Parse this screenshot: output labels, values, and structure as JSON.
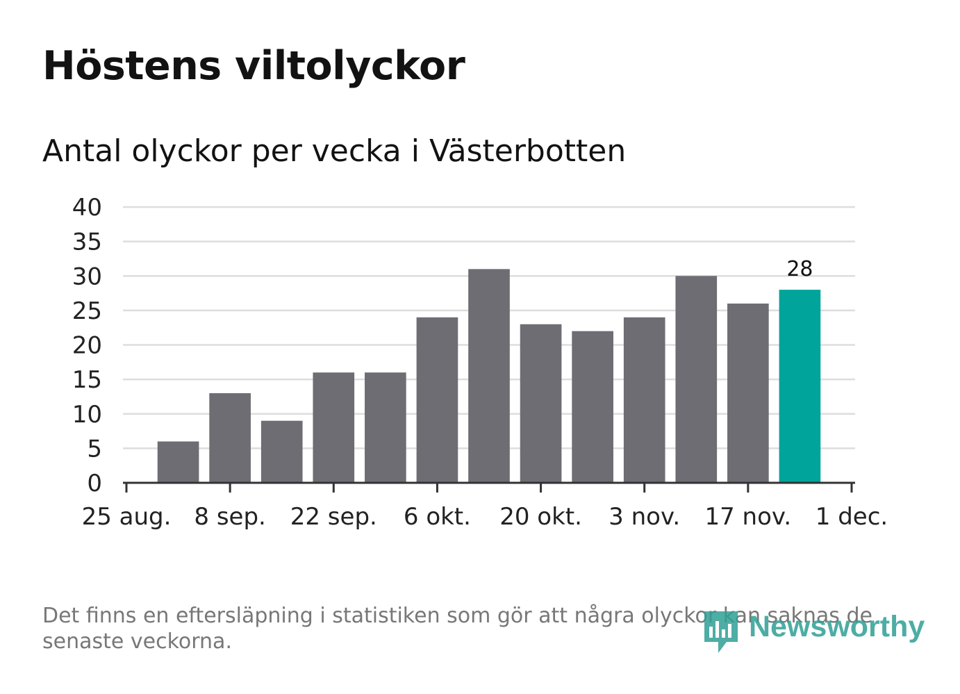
{
  "title": "Höstens viltolyckor",
  "subtitle": "Antal olyckor per vecka i Västerbotten",
  "footnote": "Det finns en eftersläpning i statistiken som gör att några olyckor kan saknas de senaste veckorna.",
  "brand": {
    "name": "Newsworthy",
    "icon": "bar-chart-speech-bubble-icon"
  },
  "colors": {
    "bar": "#6e6d73",
    "highlight": "#00a49a",
    "grid": "#dddddd",
    "axis": "#333333",
    "text": "#222222"
  },
  "chart_data": {
    "type": "bar",
    "title": "Antal olyckor per vecka i Västerbotten",
    "xlabel": "",
    "ylabel": "",
    "ylim": [
      0,
      40
    ],
    "yticks": [
      0,
      5,
      10,
      15,
      20,
      25,
      30,
      35,
      40
    ],
    "xlim_days": [
      0,
      98
    ],
    "xticks": [
      {
        "label": "25 aug.",
        "day": 0
      },
      {
        "label": "8 sep.",
        "day": 14
      },
      {
        "label": "22 sep.",
        "day": 28
      },
      {
        "label": "6 okt.",
        "day": 42
      },
      {
        "label": "20 okt.",
        "day": 56
      },
      {
        "label": "3 nov.",
        "day": 70
      },
      {
        "label": "17 nov.",
        "day": 84
      },
      {
        "label": "1 dec.",
        "day": 98
      }
    ],
    "bar_width_days": 5.6,
    "series": [
      {
        "name": "Antal olyckor",
        "days": [
          7,
          14,
          21,
          28,
          35,
          42,
          49,
          56,
          63,
          70,
          77,
          84,
          91
        ],
        "values": [
          6,
          13,
          9,
          16,
          16,
          24,
          31,
          23,
          22,
          24,
          30,
          26,
          28
        ]
      }
    ],
    "highlight_index": 12,
    "data_labels": [
      {
        "index": 12,
        "text": "28"
      }
    ],
    "grid": true,
    "legend": "none"
  }
}
